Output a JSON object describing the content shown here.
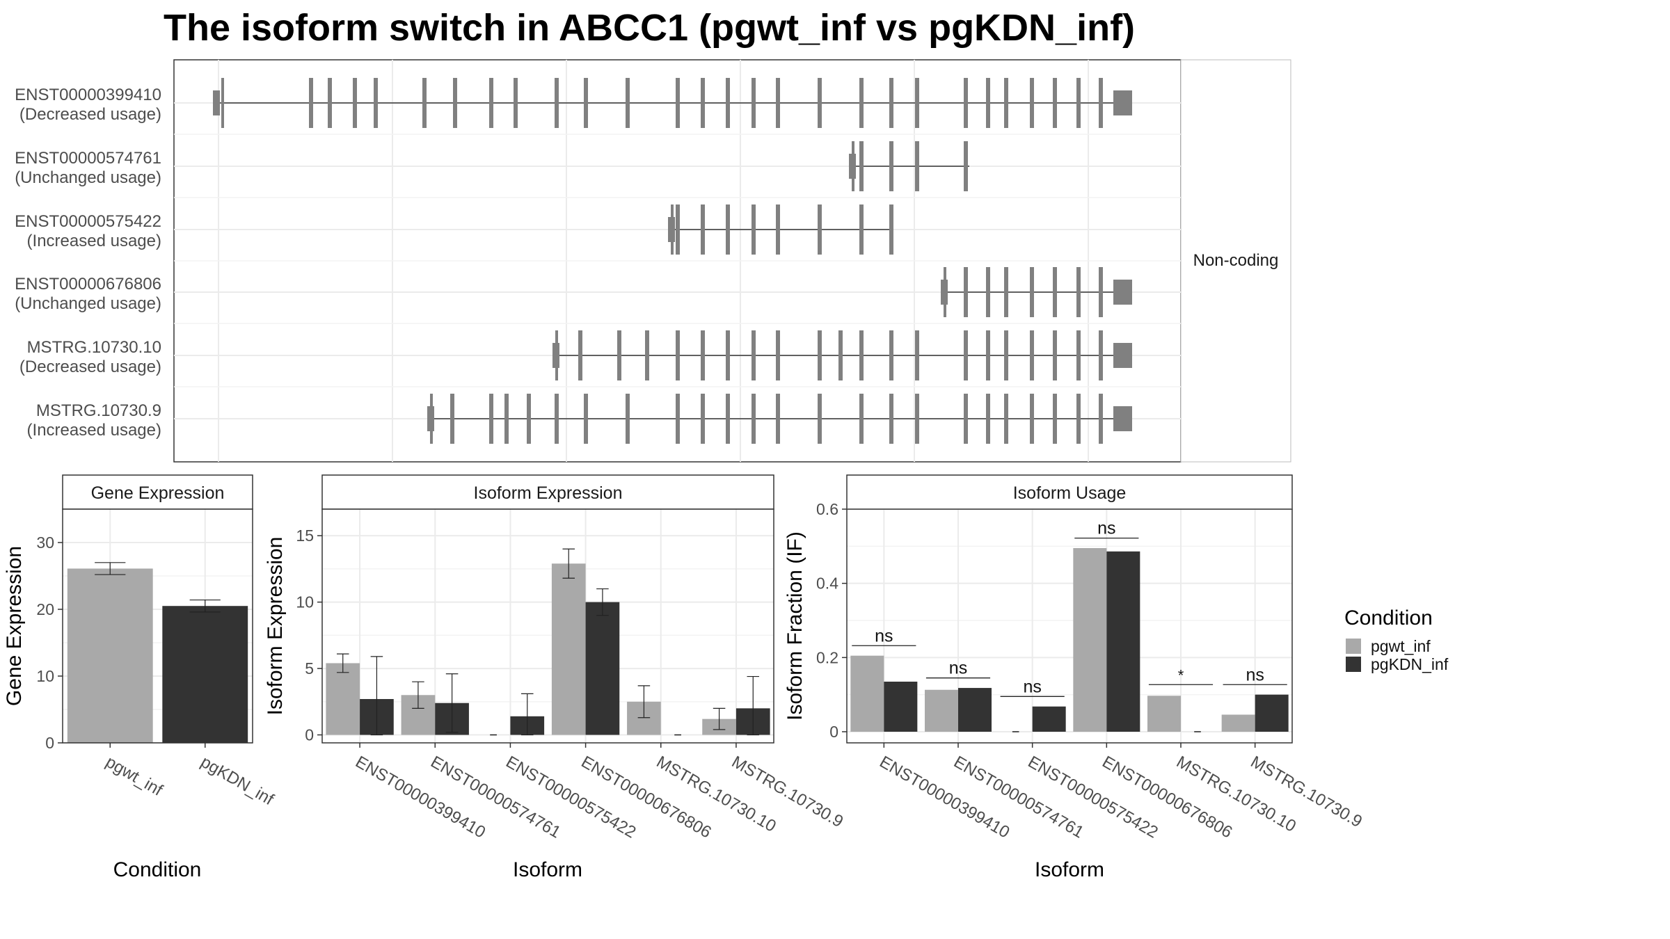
{
  "title": "The isoform switch in ABCC1 (pgwt_inf vs pgKDN_inf)",
  "colors": {
    "pgwt_inf": "#a9a9a9",
    "pgKDN_inf": "#333333",
    "exon": "#808080",
    "grid": "#ebebeb",
    "border": "#333333"
  },
  "structure": {
    "facet_label": "Non-coding",
    "transcripts": [
      {
        "id": "ENST00000399410",
        "usage": "(Decreased usage)"
      },
      {
        "id": "ENST00000574761",
        "usage": "(Unchanged usage)"
      },
      {
        "id": "ENST00000575422",
        "usage": "(Increased usage)"
      },
      {
        "id": "ENST00000676806",
        "usage": "(Unchanged usage)"
      },
      {
        "id": "MSTRG.10730.10",
        "usage": "(Decreased usage)"
      },
      {
        "id": "MSTRG.10730.9",
        "usage": "(Increased usage)"
      }
    ]
  },
  "legend": {
    "title": "Condition",
    "entries": [
      "pgwt_inf",
      "pgKDN_inf"
    ]
  },
  "chart_data": [
    {
      "type": "bar",
      "panel": "Gene Expression",
      "categories": [
        "pgwt_inf",
        "pgKDN_inf"
      ],
      "values": [
        26.1,
        20.5
      ],
      "errors": [
        [
          25.2,
          27.0
        ],
        [
          19.6,
          21.4
        ]
      ],
      "xlabel": "Condition",
      "ylabel": "Gene Expression",
      "ylim": [
        0,
        35
      ],
      "yticks": [
        0,
        10,
        20,
        30
      ]
    },
    {
      "type": "bar",
      "panel": "Isoform Expression",
      "categories": [
        "ENST00000399410",
        "ENST00000574761",
        "ENST00000575422",
        "ENST00000676806",
        "MSTRG.10730.10",
        "MSTRG.10730.9"
      ],
      "series": [
        {
          "name": "pgwt_inf",
          "values": [
            5.4,
            3.0,
            0.0,
            12.9,
            2.5,
            1.2
          ],
          "errors": [
            [
              4.7,
              6.1
            ],
            [
              2.0,
              4.0
            ],
            [
              0.0,
              0.0
            ],
            [
              11.8,
              14.0
            ],
            [
              1.3,
              3.7
            ],
            [
              0.4,
              2.0
            ]
          ]
        },
        {
          "name": "pgKDN_inf",
          "values": [
            2.7,
            2.4,
            1.4,
            10.0,
            0.0,
            2.0
          ],
          "errors": [
            [
              0.0,
              5.9
            ],
            [
              0.2,
              4.6
            ],
            [
              0.0,
              3.1
            ],
            [
              9.0,
              11.0
            ],
            [
              0.0,
              0.0
            ],
            [
              0.0,
              4.4
            ]
          ]
        }
      ],
      "xlabel": "Isoform",
      "ylabel": "Isoform Expression",
      "ylim": [
        -0.6,
        17.0
      ],
      "yticks": [
        0,
        5,
        10,
        15
      ]
    },
    {
      "type": "bar",
      "panel": "Isoform Usage",
      "categories": [
        "ENST00000399410",
        "ENST00000574761",
        "ENST00000575422",
        "ENST00000676806",
        "MSTRG.10730.10",
        "MSTRG.10730.9"
      ],
      "series": [
        {
          "name": "pgwt_inf",
          "values": [
            0.205,
            0.113,
            0.0,
            0.495,
            0.097,
            0.046
          ]
        },
        {
          "name": "pgKDN_inf",
          "values": [
            0.135,
            0.118,
            0.068,
            0.486,
            0.0,
            0.1
          ]
        }
      ],
      "significance": [
        {
          "label": "ns",
          "y": 0.232
        },
        {
          "label": "ns",
          "y": 0.145
        },
        {
          "label": "ns",
          "y": 0.095
        },
        {
          "label": "ns",
          "y": 0.522
        },
        {
          "label": "*",
          "y": 0.127
        },
        {
          "label": "ns",
          "y": 0.127
        }
      ],
      "xlabel": "Isoform",
      "ylabel": "Isoform Fraction (IF)",
      "ylim": [
        -0.03,
        0.6
      ],
      "yticks": [
        0.0,
        0.2,
        0.4,
        0.6
      ]
    }
  ]
}
